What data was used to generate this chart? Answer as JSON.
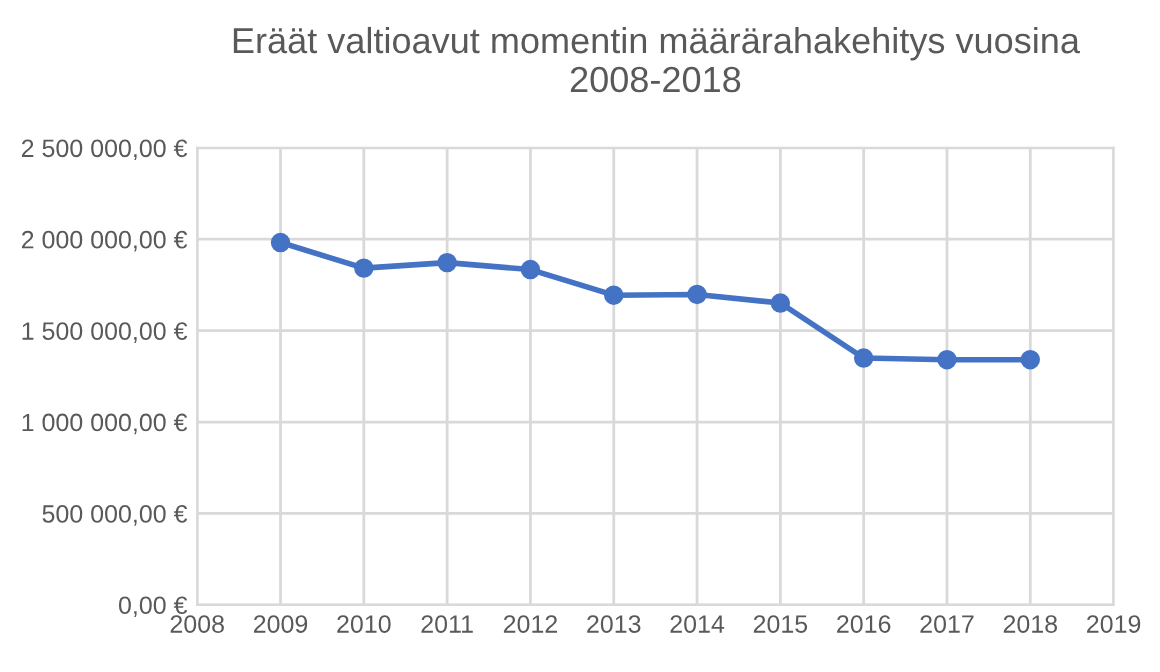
{
  "chart_data": {
    "type": "line",
    "title": "Eräät valtioavut momentin määrärahakehitys vuosina 2008-2018",
    "x": [
      2009,
      2010,
      2011,
      2012,
      2013,
      2014,
      2015,
      2016,
      2017,
      2018
    ],
    "series": [
      {
        "color": "#4472c4",
        "values": [
          1982000,
          1842000,
          1872000,
          1834000,
          1694000,
          1698000,
          1651000,
          1350000,
          1341000,
          1341000
        ]
      }
    ],
    "xlim": [
      2008,
      2019
    ],
    "xticks": [
      2008,
      2009,
      2010,
      2011,
      2012,
      2013,
      2014,
      2015,
      2016,
      2017,
      2018,
      2019
    ],
    "ylim": [
      0,
      2500000
    ],
    "yticks": [
      {
        "value": 0,
        "label": "0,00 €"
      },
      {
        "value": 500000,
        "label": "500 000,00 €"
      },
      {
        "value": 1000000,
        "label": "1 000 000,00 €"
      },
      {
        "value": 1500000,
        "label": "1 500 000,00 €"
      },
      {
        "value": 2000000,
        "label": "2 000 000,00 €"
      },
      {
        "value": 2500000,
        "label": "2 500 000,00 €"
      }
    ],
    "grid": true,
    "marker": "circle",
    "line_style": "solid"
  }
}
